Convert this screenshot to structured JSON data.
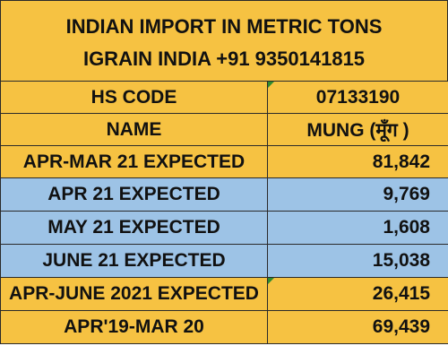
{
  "title": {
    "line1": "INDIAN IMPORT IN METRIC TONS",
    "line2": "IGRAIN INDIA +91 9350141815"
  },
  "rows": [
    {
      "label": "HS CODE",
      "value": "07133190",
      "color": "#f6c242"
    },
    {
      "label": "NAME",
      "value": "MUNG (मूँग )",
      "color": "#f6c242"
    },
    {
      "label": "APR-MAR 21 EXPECTED",
      "value": "81,842",
      "color": "#f6c242"
    },
    {
      "label": "APR 21 EXPECTED",
      "value": "9,769",
      "color": "#9dc3e6"
    },
    {
      "label": "MAY 21 EXPECTED",
      "value": "1,608",
      "color": "#9dc3e6"
    },
    {
      "label": "JUNE 21 EXPECTED",
      "value": "15,038",
      "color": "#9dc3e6"
    },
    {
      "label": "APR-JUNE 2021 EXPECTED",
      "value": "26,415",
      "color": "#f6c242"
    },
    {
      "label": "APR'19-MAR 20",
      "value": "69,439",
      "color": "#f6c242"
    }
  ]
}
